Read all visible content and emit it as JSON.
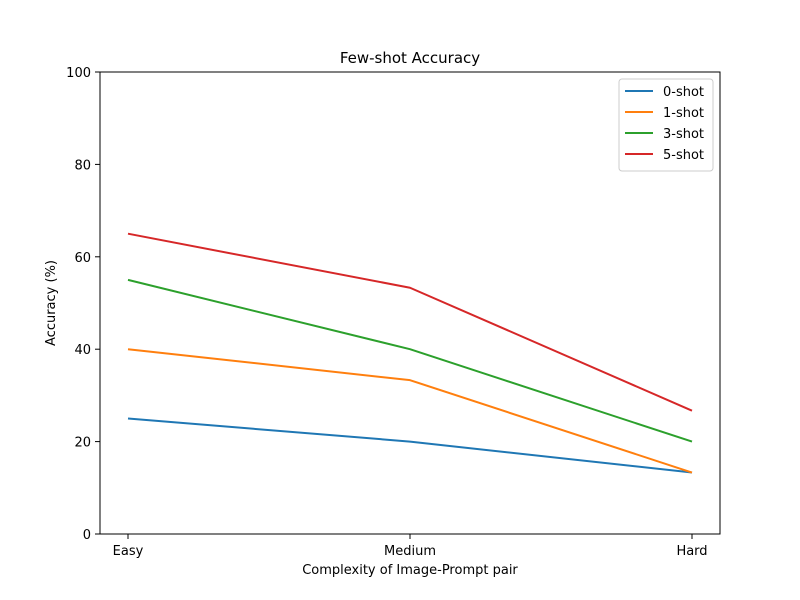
{
  "chart_data": {
    "type": "line",
    "title": "Few-shot Accuracy",
    "xlabel": "Complexity of Image-Prompt pair",
    "ylabel": "Accuracy (%)",
    "categories": [
      "Easy",
      "Medium",
      "Hard"
    ],
    "ylim": [
      0,
      100
    ],
    "yticks": [
      0,
      20,
      40,
      60,
      80,
      100
    ],
    "grid": false,
    "legend": "top-right",
    "series": [
      {
        "name": "0-shot",
        "color": "#1f77b4",
        "values": [
          25,
          20,
          13.3
        ]
      },
      {
        "name": "1-shot",
        "color": "#ff7f0e",
        "values": [
          40,
          33.3,
          13.3
        ]
      },
      {
        "name": "3-shot",
        "color": "#2ca02c",
        "values": [
          55,
          40,
          20
        ]
      },
      {
        "name": "5-shot",
        "color": "#d62728",
        "values": [
          65,
          53.3,
          26.7
        ]
      }
    ]
  }
}
